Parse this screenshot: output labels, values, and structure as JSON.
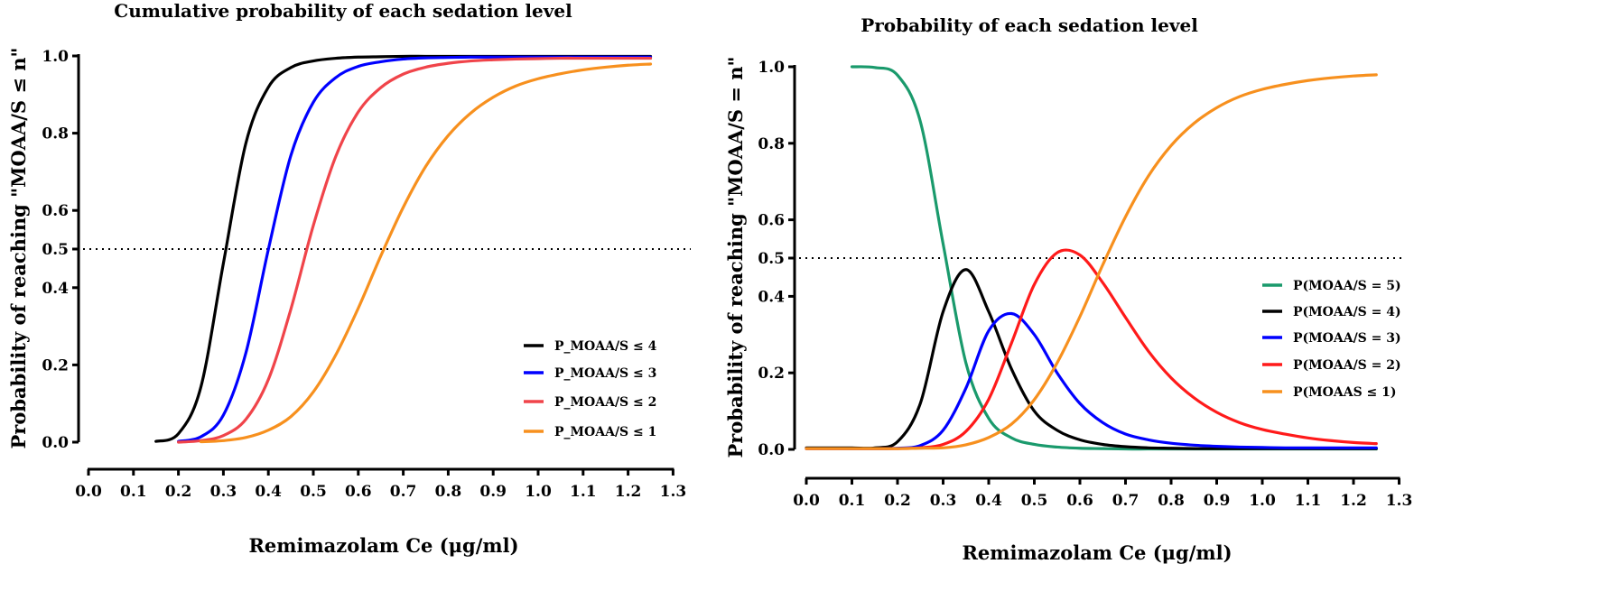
{
  "chart_data": [
    {
      "type": "line",
      "title": "Cumulative probability of each sedation level",
      "xlabel": "Remimazolam Ce (μg/ml)",
      "ylabel": "Probability of reaching \"MOAA/S ≤ n\"",
      "xlim": [
        0,
        1.3
      ],
      "ylim": [
        0,
        1.0
      ],
      "xticks": [
        "0.0",
        "0.1",
        "0.2",
        "0.3",
        "0.4",
        "0.5",
        "0.6",
        "0.7",
        "0.8",
        "0.9",
        "1.0",
        "1.1",
        "1.2",
        "1.3"
      ],
      "yticks": [
        "0.0",
        "0.2",
        "0.4",
        "0.5",
        "0.6",
        "0.8",
        "1.0"
      ],
      "reference_line": 0.5,
      "grid": false,
      "legend_position": "bottom-right",
      "x": [
        0.15,
        0.2,
        0.25,
        0.3,
        0.35,
        0.4,
        0.45,
        0.5,
        0.55,
        0.6,
        0.65,
        0.7,
        0.75,
        0.8,
        0.85,
        0.9,
        0.95,
        1.0,
        1.05,
        1.1,
        1.15,
        1.2,
        1.25
      ],
      "series": [
        {
          "name": "P_MOAA/S ≤ 4",
          "color": "#000000",
          "values": [
            0.002,
            0.022,
            0.143,
            0.463,
            0.774,
            0.919,
            0.97,
            0.987,
            0.994,
            0.997,
            0.998,
            0.999,
            0.999,
            0.999,
            0.999,
            0.999,
            0.999,
            0.999,
            0.999,
            0.999,
            0.999,
            0.999,
            0.999
          ]
        },
        {
          "name": "P_MOAA/S ≤ 3",
          "color": "#0000ff",
          "values": [
            null,
            0.002,
            0.014,
            0.07,
            0.231,
            0.499,
            0.742,
            0.88,
            0.944,
            0.973,
            0.985,
            0.992,
            0.995,
            0.996,
            0.997,
            0.997,
            0.997,
            0.997,
            0.997,
            0.997,
            0.997,
            0.997,
            0.997
          ]
        },
        {
          "name": "P_MOAA/S ≤ 2",
          "color": "#f0444a",
          "values": [
            null,
            0.0,
            0.004,
            0.017,
            0.059,
            0.162,
            0.344,
            0.561,
            0.74,
            0.855,
            0.918,
            0.953,
            0.971,
            0.981,
            0.987,
            0.99,
            0.992,
            0.993,
            0.994,
            0.994,
            0.994,
            0.994,
            0.994
          ]
        },
        {
          "name": "P_MOAA/S ≤ 1",
          "color": "#f7901e",
          "values": [
            null,
            null,
            0.001,
            0.004,
            0.012,
            0.031,
            0.066,
            0.13,
            0.226,
            0.347,
            0.482,
            0.608,
            0.714,
            0.794,
            0.852,
            0.893,
            0.922,
            0.941,
            0.954,
            0.964,
            0.971,
            0.976,
            0.979
          ]
        }
      ]
    },
    {
      "type": "line",
      "title": "Probability of each sedation level",
      "xlabel": "Remimazolam Ce (μg/ml)",
      "ylabel": "Probability of reaching \"MOAA/S = n\"",
      "xlim": [
        0,
        1.3
      ],
      "ylim": [
        0,
        1.0
      ],
      "xticks": [
        "0.0",
        "0.1",
        "0.2",
        "0.3",
        "0.4",
        "0.5",
        "0.6",
        "0.7",
        "0.8",
        "0.9",
        "1.0",
        "1.1",
        "1.2",
        "1.3"
      ],
      "yticks": [
        "0.0",
        "0.2",
        "0.4",
        "0.5",
        "0.6",
        "0.8",
        "1.0"
      ],
      "reference_line": 0.5,
      "grid": false,
      "legend_position": "right",
      "x": [
        0,
        0.05,
        0.1,
        0.15,
        0.2,
        0.25,
        0.3,
        0.35,
        0.4,
        0.45,
        0.5,
        0.55,
        0.6,
        0.65,
        0.7,
        0.75,
        0.8,
        0.85,
        0.9,
        0.95,
        1.0,
        1.05,
        1.1,
        1.15,
        1.2,
        1.25
      ],
      "series": [
        {
          "name": "P(MOAA/S = 5)",
          "color": "#1a9a6c",
          "values": [
            null,
            null,
            1.0,
            0.998,
            0.978,
            0.857,
            0.537,
            0.226,
            0.081,
            0.03,
            0.013,
            0.006,
            0.003,
            0.002,
            0.001,
            0.001,
            0.001,
            0.001,
            0.001,
            0.001,
            0.001,
            0.001,
            0.001,
            0.001,
            0.001,
            0.001
          ]
        },
        {
          "name": "P(MOAA/S = 4)",
          "color": "#000000",
          "values": [
            0.004,
            0.004,
            0.004,
            0.004,
            0.02,
            0.12,
            0.36,
            0.47,
            0.36,
            0.21,
            0.1,
            0.05,
            0.025,
            0.013,
            0.007,
            0.004,
            0.003,
            0.002,
            0.002,
            0.002,
            0.002,
            0.002,
            0.002,
            0.002,
            0.002,
            0.002
          ]
        },
        {
          "name": "P(MOAA/S = 3)",
          "color": "#0000ff",
          "values": [
            0.002,
            0.002,
            0.002,
            0.002,
            0.003,
            0.01,
            0.05,
            0.16,
            0.31,
            0.355,
            0.3,
            0.2,
            0.12,
            0.07,
            0.04,
            0.025,
            0.016,
            0.011,
            0.008,
            0.006,
            0.005,
            0.004,
            0.004,
            0.004,
            0.004,
            0.004
          ]
        },
        {
          "name": "P(MOAA/S = 2)",
          "color": "#ff1a1a",
          "values": [
            0.002,
            0.002,
            0.002,
            0.002,
            0.002,
            0.004,
            0.013,
            0.047,
            0.131,
            0.278,
            0.431,
            0.514,
            0.508,
            0.436,
            0.345,
            0.257,
            0.187,
            0.135,
            0.097,
            0.07,
            0.052,
            0.04,
            0.03,
            0.023,
            0.018,
            0.015
          ]
        },
        {
          "name": "P(MOAAS ≤ 1)",
          "color": "#f7901e",
          "values": [
            0.002,
            0.002,
            0.002,
            0.002,
            0.002,
            0.003,
            0.004,
            0.012,
            0.031,
            0.066,
            0.13,
            0.226,
            0.347,
            0.482,
            0.608,
            0.714,
            0.794,
            0.852,
            0.893,
            0.922,
            0.941,
            0.954,
            0.964,
            0.971,
            0.976,
            0.979
          ]
        }
      ]
    }
  ]
}
